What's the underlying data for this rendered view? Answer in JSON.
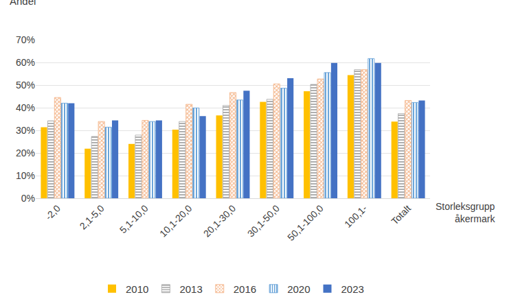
{
  "chart_data": {
    "type": "bar",
    "x_label": "Storleksgrupp\nåkermark",
    "y_label": "Andel",
    "categories": [
      "-2,0",
      "2,1-5,0",
      "5,1-10,0",
      "10,1-20,0",
      "20,1-30,0",
      "30,1-50,0",
      "50,1-100,0",
      "100,1-",
      "Totalt"
    ],
    "series": [
      {
        "name": "2010",
        "color": "#FFC000",
        "marker": "solid",
        "values": [
          31.4,
          21.9,
          24.0,
          30.3,
          36.6,
          42.6,
          47.3,
          54.4,
          33.9
        ]
      },
      {
        "name": "2013",
        "color": "#A6A6A6",
        "marker": "hlines",
        "values": [
          34.2,
          27.3,
          27.9,
          33.9,
          41.0,
          43.7,
          50.3,
          56.8,
          37.4
        ]
      },
      {
        "name": "2016",
        "color": "#F4B183",
        "marker": "crosshatch",
        "values": [
          44.5,
          33.9,
          34.4,
          41.5,
          46.7,
          50.5,
          52.7,
          56.8,
          43.2
        ]
      },
      {
        "name": "2020",
        "color": "#5B9BD5",
        "marker": "vlines",
        "values": [
          42.0,
          31.4,
          33.9,
          39.9,
          43.4,
          48.6,
          55.5,
          61.7,
          42.3
        ]
      },
      {
        "name": "2023",
        "color": "#4472C4",
        "marker": "solid",
        "values": [
          42.0,
          34.4,
          34.4,
          36.3,
          47.5,
          53.0,
          59.8,
          59.8,
          43.2
        ]
      }
    ],
    "ylim": [
      0,
      70
    ],
    "yticks": [
      {
        "value": 0,
        "label": "0%"
      },
      {
        "value": 10,
        "label": "10%"
      },
      {
        "value": 20,
        "label": "20%"
      },
      {
        "value": 30,
        "label": "30%"
      },
      {
        "value": 40,
        "label": "40%"
      },
      {
        "value": 50,
        "label": "50%"
      },
      {
        "value": 60,
        "label": "60%"
      },
      {
        "value": 70,
        "label": "70%"
      }
    ],
    "grid": true,
    "legend": "bottom"
  }
}
